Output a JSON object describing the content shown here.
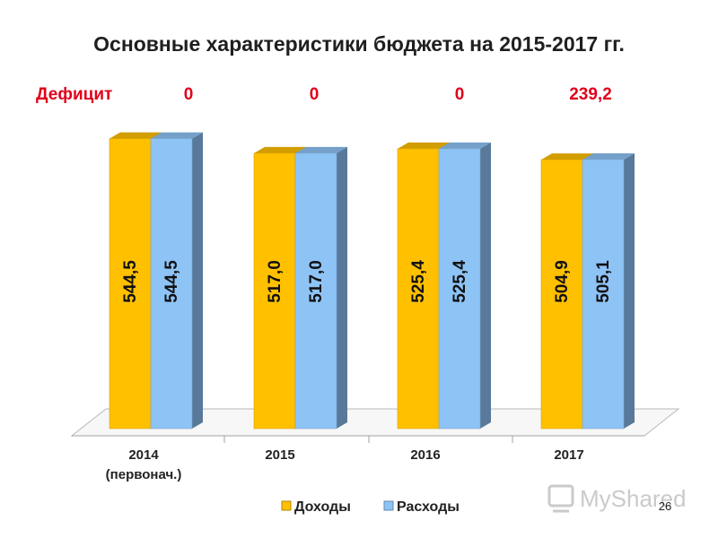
{
  "page_number": "26",
  "watermark": "MyShared",
  "deficit": {
    "label": "Дефицит",
    "values": [
      "0",
      "0",
      "0",
      "239,2"
    ],
    "color": "#e0001b"
  },
  "chart_data": {
    "type": "bar",
    "title": "Основные характеристики бюджета на 2015-2017 гг.",
    "categories": [
      [
        "2014",
        "(первонач.)"
      ],
      [
        "2015"
      ],
      [
        "2016"
      ],
      [
        "2017"
      ]
    ],
    "series": [
      {
        "name": "Доходы",
        "values": [
          544.5,
          517.0,
          525.4,
          504.9
        ],
        "labels": [
          "544,5",
          "517,0",
          "525,4",
          "504,9"
        ],
        "color": "#ffc000"
      },
      {
        "name": "Расходы",
        "values": [
          544.5,
          517.0,
          525.4,
          505.1
        ],
        "labels": [
          "544,5",
          "517,0",
          "525,4",
          "505,1"
        ],
        "color": "#8ec3f6"
      }
    ],
    "ylim": [
      0,
      600
    ],
    "grid": false,
    "legend_position": "bottom",
    "bar_label_orientation": "vertical"
  }
}
